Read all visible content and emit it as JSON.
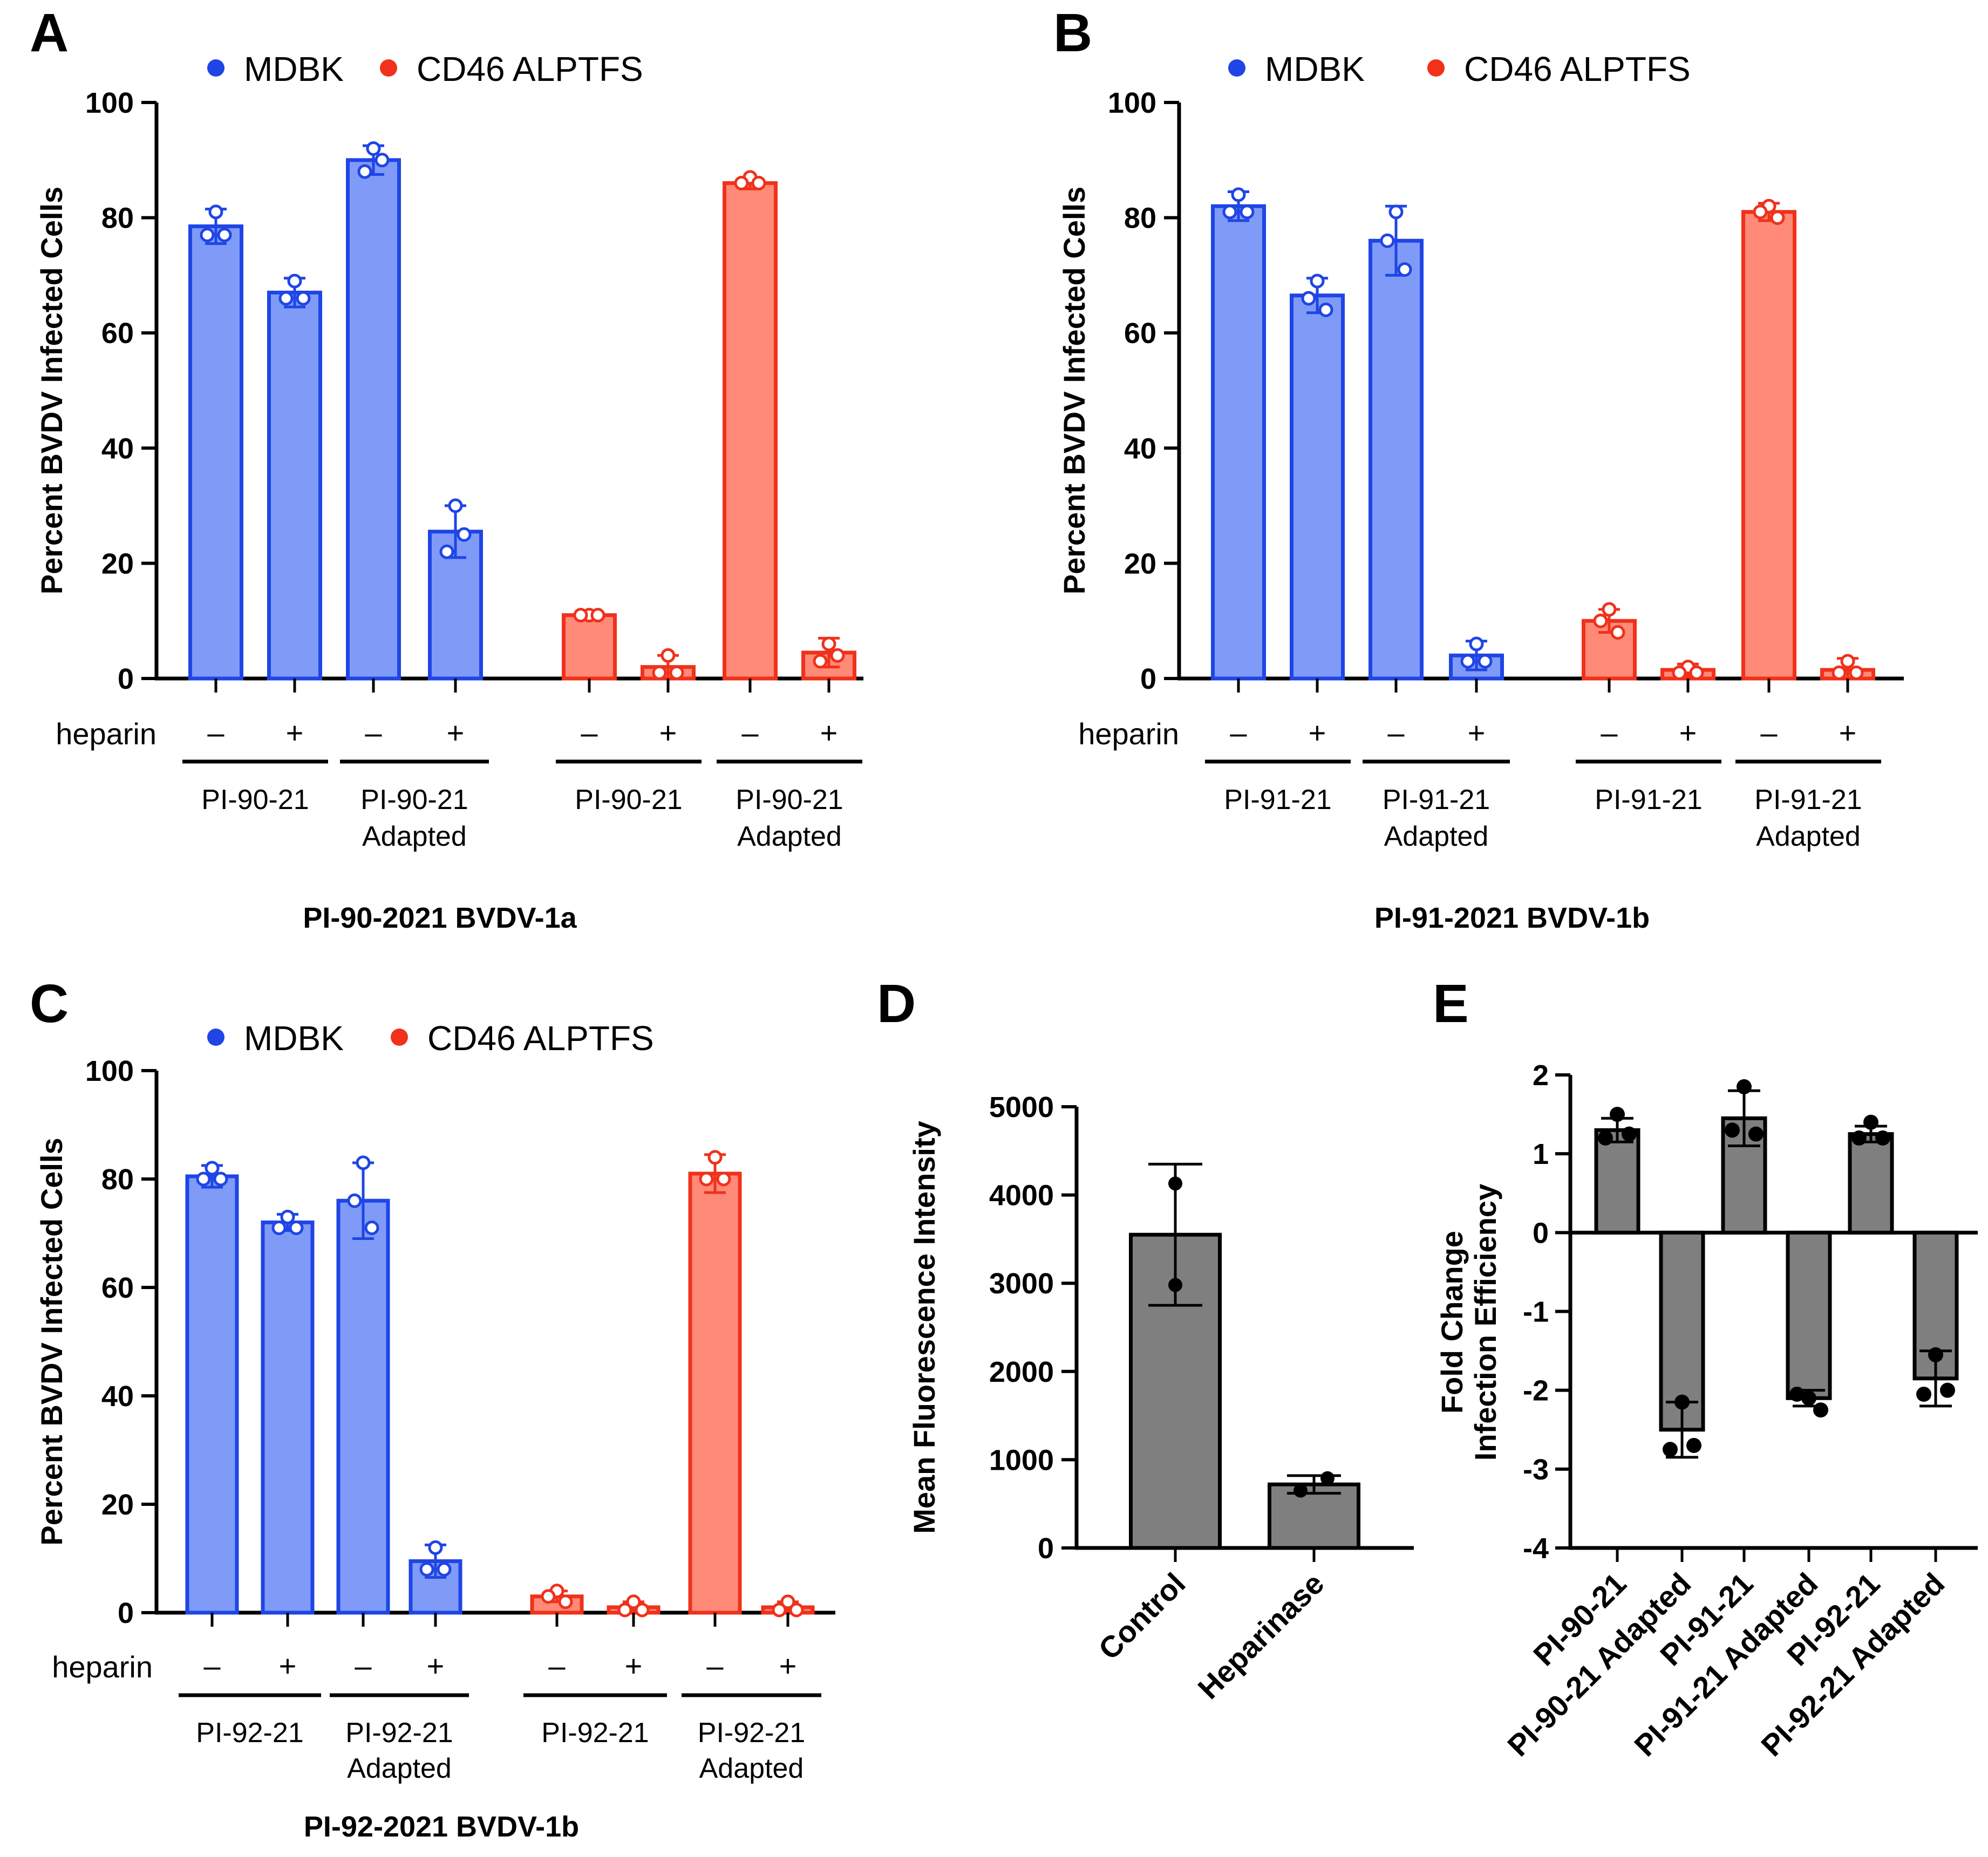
{
  "colors": {
    "mdbk_fill": "#7f9bf7",
    "mdbk_stroke": "#1f45e6",
    "alptfs_fill": "#ff8a78",
    "alptfs_stroke": "#f0311b",
    "gray_fill": "#7f7f7f",
    "dot_black": "#000000"
  },
  "chart_data": [
    {
      "panel": "A",
      "type": "bar",
      "title": "PI-90-2021 BVDV-1a",
      "ylabel": "Percent BVDV Infected Cells",
      "ylim": [
        0,
        100
      ],
      "yticks": [
        0,
        20,
        40,
        60,
        80,
        100
      ],
      "legend": [
        "MDBK",
        "CD46 ALPTFS"
      ],
      "row_label": "heparin",
      "treatment": [
        "–",
        "+",
        "–",
        "+",
        "–",
        "+",
        "–",
        "+"
      ],
      "series_of_bar": [
        "MDBK",
        "MDBK",
        "MDBK",
        "MDBK",
        "CD46 ALPTFS",
        "CD46 ALPTFS",
        "CD46 ALPTFS",
        "CD46 ALPTFS"
      ],
      "groups": [
        [
          "PI-90-21"
        ],
        [
          "PI-90-21",
          "Adapted"
        ],
        [
          "PI-90-21"
        ],
        [
          "PI-90-21",
          "Adapted"
        ]
      ],
      "values": [
        78.5,
        67,
        90,
        25.5,
        11,
        2,
        86,
        4.5
      ],
      "errors": [
        3,
        2.5,
        2.5,
        4.5,
        0.5,
        2,
        1,
        2.5
      ],
      "points": [
        [
          81,
          77,
          77
        ],
        [
          69,
          66,
          66
        ],
        [
          92,
          88,
          90
        ],
        [
          30,
          22,
          25
        ],
        [
          11,
          11,
          11
        ],
        [
          4,
          1,
          1
        ],
        [
          87,
          86,
          86
        ],
        [
          6,
          3,
          4
        ]
      ]
    },
    {
      "panel": "B",
      "type": "bar",
      "title": "PI-91-2021 BVDV-1b",
      "ylabel": "Percent BVDV Infected Cells",
      "ylim": [
        0,
        100
      ],
      "yticks": [
        0,
        20,
        40,
        60,
        80,
        100
      ],
      "legend": [
        "MDBK",
        "CD46 ALPTFS"
      ],
      "row_label": "heparin",
      "treatment": [
        "–",
        "+",
        "–",
        "+",
        "–",
        "+",
        "–",
        "+"
      ],
      "series_of_bar": [
        "MDBK",
        "MDBK",
        "MDBK",
        "MDBK",
        "CD46 ALPTFS",
        "CD46 ALPTFS",
        "CD46 ALPTFS",
        "CD46 ALPTFS"
      ],
      "groups": [
        [
          "PI-91-21"
        ],
        [
          "PI-91-21",
          "Adapted"
        ],
        [
          "PI-91-21"
        ],
        [
          "PI-91-21",
          "Adapted"
        ]
      ],
      "values": [
        82,
        66.5,
        76,
        4,
        10,
        1.5,
        81,
        1.5
      ],
      "errors": [
        2.5,
        3,
        6,
        2.5,
        2,
        1,
        1.5,
        2
      ],
      "points": [
        [
          84,
          81,
          81
        ],
        [
          69,
          66,
          64
        ],
        [
          81,
          76,
          71
        ],
        [
          6,
          3,
          3
        ],
        [
          12,
          10,
          8
        ],
        [
          2,
          1,
          1
        ],
        [
          82,
          81,
          80
        ],
        [
          3,
          1,
          1
        ]
      ]
    },
    {
      "panel": "C",
      "type": "bar",
      "title": "PI-92-2021 BVDV-1b",
      "ylabel": "Percent BVDV Infected Cells",
      "ylim": [
        0,
        100
      ],
      "yticks": [
        0,
        20,
        40,
        60,
        80,
        100
      ],
      "legend": [
        "MDBK",
        "CD46 ALPTFS"
      ],
      "row_label": "heparin",
      "treatment": [
        "–",
        "+",
        "–",
        "+",
        "–",
        "+",
        "–",
        "+"
      ],
      "series_of_bar": [
        "MDBK",
        "MDBK",
        "MDBK",
        "MDBK",
        "CD46 ALPTFS",
        "CD46 ALPTFS",
        "CD46 ALPTFS",
        "CD46 ALPTFS"
      ],
      "groups": [
        [
          "PI-92-21"
        ],
        [
          "PI-92-21",
          "Adapted"
        ],
        [
          "PI-92-21"
        ],
        [
          "PI-92-21",
          "Adapted"
        ]
      ],
      "values": [
        80.5,
        72,
        76,
        9.5,
        3,
        1,
        81,
        1
      ],
      "errors": [
        2,
        1.5,
        7,
        3,
        1,
        1,
        3.5,
        1
      ],
      "points": [
        [
          82,
          80,
          80
        ],
        [
          73,
          71,
          71
        ],
        [
          83,
          76,
          71
        ],
        [
          12,
          8,
          8
        ],
        [
          4,
          3,
          2
        ],
        [
          2,
          0.5,
          0.5
        ],
        [
          84,
          80,
          80
        ],
        [
          2,
          0.5,
          0.5
        ]
      ]
    },
    {
      "panel": "D",
      "type": "bar",
      "title": "",
      "ylabel": "Mean Fluorescence Intensity",
      "ylim": [
        0,
        5000
      ],
      "yticks": [
        0,
        1000,
        2000,
        3000,
        4000,
        5000
      ],
      "categories": [
        "Control",
        "Heparinase"
      ],
      "values": [
        3550,
        720
      ],
      "errors": [
        800,
        100
      ],
      "points": [
        [
          4130,
          2980
        ],
        [
          650,
          790
        ]
      ]
    },
    {
      "panel": "E",
      "type": "bar",
      "title": "",
      "ylabel": "Fold Change Infection Efficiency",
      "ylim": [
        -4,
        2
      ],
      "yticks": [
        -4,
        -3,
        -2,
        -1,
        0,
        1,
        2
      ],
      "categories": [
        "PI-90-21",
        "PI-90-21 Adapted",
        "PI-91-21",
        "PI-91-21 Adapted",
        "PI-92-21",
        "PI-92-21 Adapted"
      ],
      "values": [
        1.3,
        -2.5,
        1.45,
        -2.1,
        1.25,
        -1.85
      ],
      "errors": [
        0.15,
        0.35,
        0.35,
        0.1,
        0.1,
        0.35
      ],
      "points": [
        [
          1.5,
          1.2,
          1.25
        ],
        [
          -2.15,
          -2.75,
          -2.7
        ],
        [
          1.85,
          1.3,
          1.25
        ],
        [
          -2.1,
          -2.05,
          -2.25
        ],
        [
          1.4,
          1.2,
          1.2
        ],
        [
          -1.55,
          -2.05,
          -2.0
        ]
      ]
    }
  ]
}
